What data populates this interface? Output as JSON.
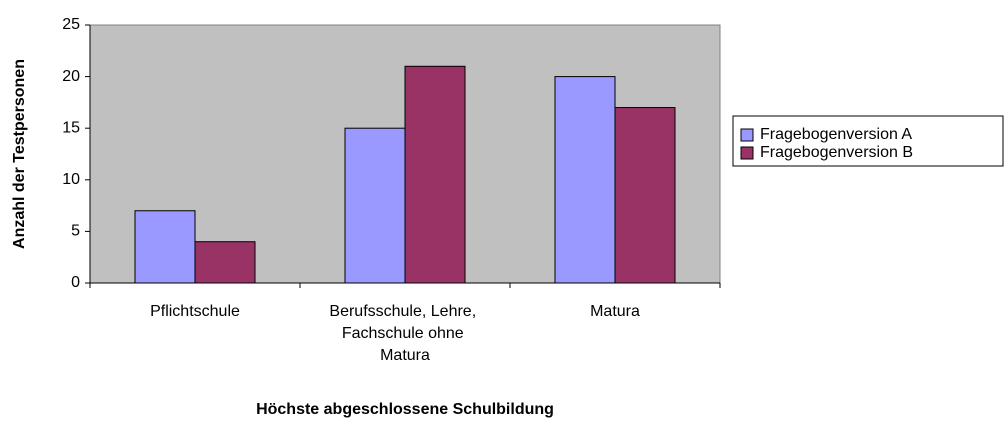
{
  "chart_data": {
    "type": "bar",
    "x_label": "Höchste abgeschlossene Schulbildung",
    "y_label": "Anzahl der Testpersonen",
    "categories": [
      "Pflichtschule",
      "Berufsschule, Lehre, Fachschule ohne Matura",
      "Matura"
    ],
    "series": [
      {
        "name": "Fragebogenversion A",
        "color": "#9999ff",
        "values": [
          7,
          15,
          20
        ]
      },
      {
        "name": "Fragebogenversion B",
        "color": "#993366",
        "values": [
          4,
          21,
          17
        ]
      }
    ],
    "ylim": [
      0,
      25
    ],
    "yticks": [
      0,
      5,
      10,
      15,
      20,
      25
    ],
    "grid": false,
    "plot_background": "#c0c0c0",
    "legend": "right"
  }
}
